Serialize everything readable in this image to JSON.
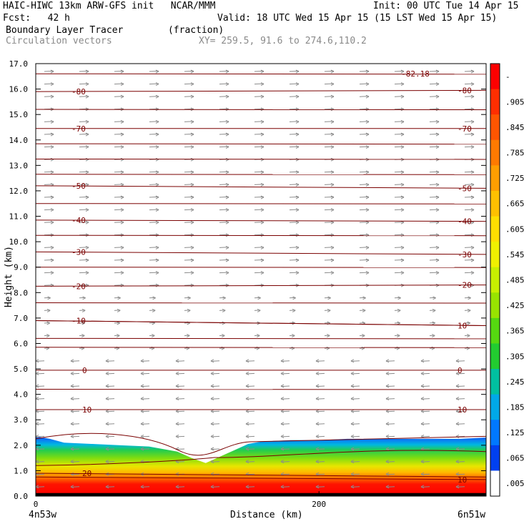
{
  "header": {
    "model_line": "HAIC-HIWC 13km ARW-GFS init   NCAR/MMM",
    "init_line": "Init: 00 UTC Tue 14 Apr 15",
    "fcst_line": "Fcst:   42 h",
    "valid_line": "Valid: 18 UTC Wed 15 Apr 15 (15 LST Wed 15 Apr 15)",
    "field_line": "Boundary Layer Tracer        (fraction)",
    "vectors_line": "Circulation vectors",
    "xy_line": "XY= 259.5, 91.6 to 274.6,110.2"
  },
  "chart_data": {
    "type": "heatmap",
    "xlabel": "Distance (km)",
    "ylabel": "Height (km)",
    "xlim": [
      0,
      318
    ],
    "ylim": [
      0,
      17
    ],
    "xticks": [
      0,
      200
    ],
    "xtick_labels": [
      "0",
      "200"
    ],
    "yticks": [
      0,
      1,
      2,
      3,
      4,
      5,
      6,
      7,
      8,
      9,
      10,
      11,
      12,
      13,
      14,
      15,
      16,
      17
    ],
    "ytick_labels": [
      "0.0",
      "1.0",
      "2.0",
      "3.0",
      "4.0",
      "5.0",
      "6.0",
      "7.0",
      "8.0",
      "9.0",
      "10.0",
      "11.0",
      "12.0",
      "13.0",
      "14.0",
      "15.0",
      "16.0",
      "17.0"
    ],
    "endpoint_labels": {
      "left": "4n53w",
      "right": "6n51w"
    },
    "colorbar": {
      "labels": [
        "-",
        ".905",
        ".845",
        ".785",
        ".725",
        ".665",
        ".605",
        ".545",
        ".485",
        ".425",
        ".365",
        ".305",
        ".245",
        ".185",
        ".125",
        ".065",
        ".005"
      ],
      "colors": [
        "#fd0000",
        "#ff2e00",
        "#ff5500",
        "#ff7a00",
        "#ff9e00",
        "#ffc000",
        "#ffdf00",
        "#f0f000",
        "#c8ef00",
        "#98e300",
        "#55d810",
        "#22cc30",
        "#00bfa0",
        "#00a8e8",
        "#0078ff",
        "#0040f0",
        "#ffffff"
      ]
    },
    "plume": {
      "x": [
        0,
        10,
        20,
        40,
        60,
        80,
        100,
        110,
        120,
        130,
        140,
        150,
        160,
        180,
        200,
        220,
        240,
        260,
        280,
        300,
        318
      ],
      "top_km": [
        2.35,
        2.25,
        2.1,
        2.05,
        2.0,
        1.95,
        1.75,
        1.5,
        1.3,
        1.55,
        1.8,
        2.05,
        2.15,
        2.2,
        2.2,
        2.25,
        2.25,
        2.25,
        2.25,
        2.25,
        2.3
      ]
    },
    "temperature_isotherms": {
      "units": "C",
      "levels": [
        {
          "value": -80,
          "label": "-80",
          "height_left": 15.9,
          "height_right": 15.95,
          "label_left": true,
          "label_right": true
        },
        {
          "value": -70,
          "label": "-70",
          "height_left": 14.45,
          "height_right": 14.45,
          "label_left": true,
          "label_right": true
        },
        {
          "value": -50,
          "label": "-50",
          "height_left": 12.2,
          "height_right": 12.1,
          "label_left": true,
          "label_right": true
        },
        {
          "value": -40,
          "label": "-40",
          "height_left": 10.85,
          "height_right": 10.8,
          "label_left": true,
          "label_right": true
        },
        {
          "value": -30,
          "label": "-30",
          "height_left": 9.6,
          "height_right": 9.5,
          "label_left": true,
          "label_right": true
        },
        {
          "value": -20,
          "label": "-20",
          "height_left": 8.25,
          "height_right": 8.3,
          "label_left": true,
          "label_right": true
        },
        {
          "value": -10,
          "label": "-10",
          "height_left": 6.9,
          "height_right": 6.7,
          "label_left": true,
          "label_right": false
        },
        {
          "value": 10,
          "label": "10",
          "height_left": 6.9,
          "height_right": 6.7,
          "label_left": false,
          "label_right": true
        },
        {
          "value": 0,
          "label": "0",
          "height_left": 4.95,
          "height_right": 4.95,
          "label_left": true,
          "label_right": true
        },
        {
          "value": 10,
          "label": "10",
          "height_left": 3.4,
          "height_right": 3.4,
          "label_left": true,
          "label_right": true
        },
        {
          "value": 20,
          "label": "20",
          "height_left": 0.9,
          "height_right": 0.75,
          "label_left": true,
          "label_right": false
        },
        {
          "value": 10,
          "label": "10",
          "height_left": 0.75,
          "height_right": 0.65,
          "label_left": false,
          "label_right": true
        }
      ],
      "unlabeled_heights_km": [
        16.6,
        15.2,
        13.85,
        13.25,
        12.65,
        11.5,
        10.25,
        9.0,
        7.6,
        6.2,
        5.85,
        4.2
      ],
      "min_annotation": {
        "text": "-82.18",
        "x_km": 258,
        "height_km": 16.55
      }
    },
    "circulation_vectors": {
      "upper_direction": "eastward (left to right)",
      "lower_direction": "westward (right to left)",
      "reversal_height_km": 5.5
    }
  }
}
